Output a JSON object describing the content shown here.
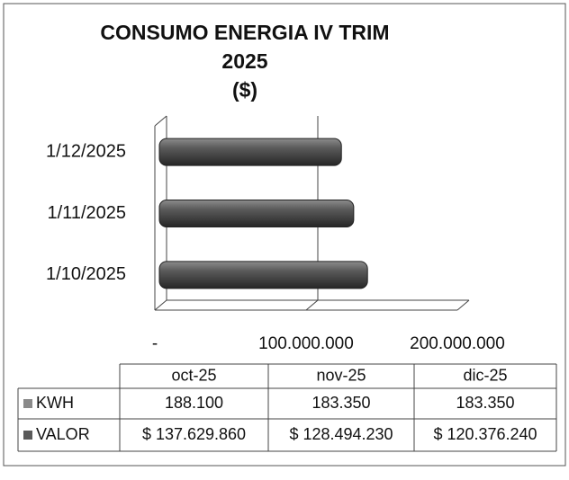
{
  "chart_data": {
    "type": "bar",
    "title": [
      "CONSUMO  ENERGIA IV TRIM",
      "2025",
      "($)"
    ],
    "categories": [
      "1/10/2025",
      "1/11/2025",
      "1/12/2025"
    ],
    "table_columns": [
      "oct-25",
      "nov-25",
      "dic-25"
    ],
    "series": [
      {
        "name": "KWH",
        "color": "#8a8a8a",
        "values": [
          188100,
          183350,
          183350
        ],
        "value_labels": [
          "188.100",
          "183.350",
          "183.350"
        ]
      },
      {
        "name": "VALOR",
        "color": "#5a5a5a",
        "values": [
          137629860,
          128494230,
          120376240
        ],
        "value_labels": [
          "$ 137.629.860",
          "$ 128.494.230",
          "$ 120.376.240"
        ]
      }
    ],
    "xlim": [
      0,
      200000000
    ],
    "xticks": [
      {
        "value": 0,
        "label": "-"
      },
      {
        "value": 100000000,
        "label": "100.000.000"
      },
      {
        "value": 200000000,
        "label": "200.000.000"
      }
    ]
  }
}
